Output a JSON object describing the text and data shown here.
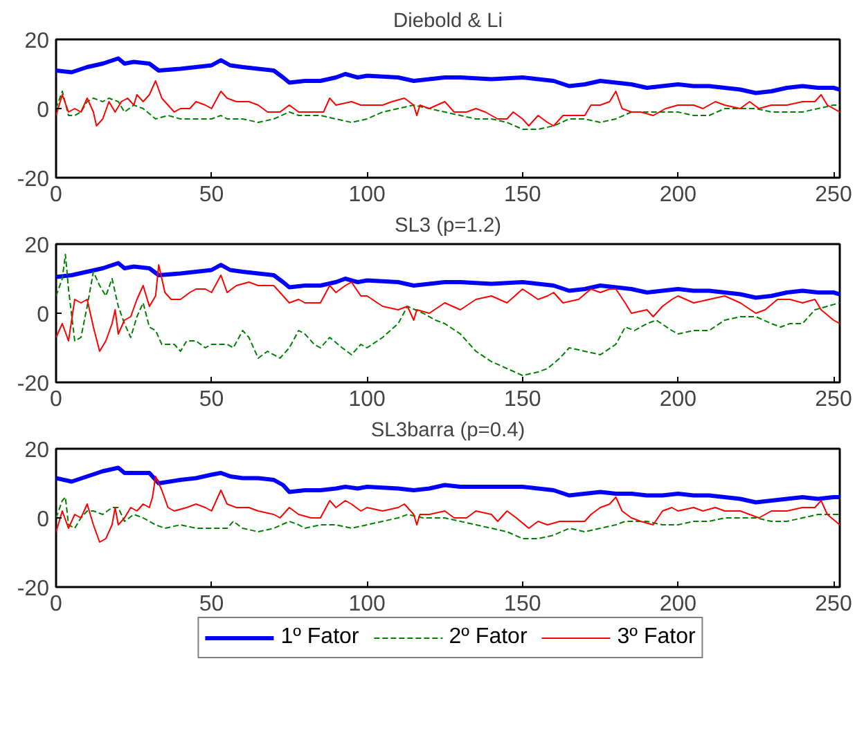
{
  "chart_data": [
    {
      "type": "line",
      "title": "Diebold & Li",
      "xlim": [
        0,
        252
      ],
      "ylim": [
        -20,
        20
      ],
      "xticks": [
        0,
        50,
        100,
        150,
        200,
        250
      ],
      "yticks": [
        -20,
        0,
        20
      ],
      "grid": false,
      "legend": false,
      "series": [
        {
          "color": "#0000ff",
          "line_style": "solid",
          "x": [
            0,
            5,
            10,
            15,
            20,
            22,
            25,
            30,
            33,
            40,
            45,
            50,
            53,
            56,
            60,
            65,
            70,
            73,
            75,
            80,
            85,
            90,
            93,
            97,
            100,
            110,
            115,
            120,
            125,
            130,
            140,
            150,
            155,
            160,
            165,
            170,
            175,
            180,
            185,
            190,
            195,
            200,
            205,
            210,
            215,
            220,
            225,
            230,
            235,
            240,
            245,
            250,
            252
          ],
          "values": [
            11,
            10.5,
            12,
            13,
            14.5,
            13,
            13.5,
            13,
            11,
            11.5,
            12,
            12.5,
            14,
            12.5,
            12,
            11.5,
            11,
            9,
            7.5,
            8,
            8,
            9,
            10,
            9,
            9.5,
            9,
            8,
            8.5,
            9,
            9,
            8.5,
            9,
            8.5,
            8,
            6.5,
            7,
            8,
            7.5,
            7,
            6,
            6.5,
            7,
            6.5,
            6.5,
            6,
            5.5,
            4.5,
            5,
            6,
            6.5,
            6,
            6,
            5.5
          ]
        },
        {
          "color": "#008000",
          "line_style": "dashed",
          "x": [
            0,
            2,
            4,
            6,
            8,
            10,
            12,
            15,
            17,
            20,
            22,
            25,
            28,
            32,
            36,
            40,
            45,
            50,
            53,
            55,
            60,
            65,
            70,
            75,
            78,
            85,
            90,
            95,
            100,
            105,
            110,
            115,
            120,
            125,
            130,
            135,
            140,
            145,
            150,
            155,
            160,
            165,
            170,
            175,
            180,
            185,
            190,
            195,
            200,
            205,
            210,
            215,
            220,
            225,
            230,
            235,
            240,
            245,
            250,
            252
          ],
          "values": [
            0,
            5,
            -2,
            -2,
            -1,
            2,
            3,
            2,
            3,
            2,
            -1,
            1,
            0,
            -3,
            -2,
            -3,
            -3,
            -3,
            -2,
            -3,
            -3,
            -4,
            -3,
            -1,
            -2,
            -2,
            -3,
            -4,
            -3,
            -1,
            0,
            1,
            0,
            -1,
            -2,
            -3,
            -3,
            -4,
            -6,
            -6,
            -5,
            -3,
            -3,
            -4,
            -3,
            -1,
            -1,
            -1,
            -1,
            -2,
            -2,
            0,
            0,
            0,
            -1,
            -1,
            -1,
            0,
            1,
            1
          ]
        },
        {
          "color": "#ff0000",
          "line_style": "solid",
          "x": [
            0,
            2,
            4,
            6,
            8,
            10,
            12,
            13,
            15,
            17,
            19,
            21,
            23,
            25,
            26,
            28,
            30,
            32,
            34,
            36,
            38,
            40,
            43,
            45,
            48,
            50,
            53,
            55,
            58,
            62,
            65,
            68,
            72,
            75,
            78,
            82,
            86,
            88,
            90,
            95,
            98,
            100,
            105,
            108,
            112,
            115,
            116,
            117,
            120,
            125,
            128,
            132,
            135,
            138,
            142,
            145,
            147,
            150,
            152,
            155,
            158,
            160,
            163,
            166,
            170,
            172,
            175,
            178,
            180,
            182,
            185,
            188,
            192,
            196,
            200,
            205,
            208,
            212,
            215,
            220,
            223,
            226,
            230,
            235,
            240,
            244,
            246,
            248,
            252
          ],
          "values": [
            -2,
            4,
            -1,
            0,
            -1,
            3,
            -1,
            -5,
            -3,
            2,
            -1,
            2,
            3,
            1,
            4,
            2,
            4,
            8,
            3,
            1,
            -1,
            0,
            0,
            2,
            1,
            0,
            5,
            3,
            2,
            2,
            1,
            -1,
            -1,
            1,
            -1,
            -1,
            -1,
            3,
            1,
            2,
            1,
            1,
            1,
            2,
            3,
            1,
            -2,
            1,
            0,
            2,
            -1,
            -1,
            0,
            -1,
            -3,
            -3,
            -1,
            -3,
            -5,
            -2,
            -4,
            -5,
            -2,
            -2,
            -2,
            1,
            1,
            2,
            5,
            0,
            -1,
            -1,
            -2,
            0,
            1,
            1,
            0,
            2,
            1,
            0,
            2,
            0,
            1,
            1,
            2,
            2,
            4,
            1,
            -1
          ]
        }
      ]
    },
    {
      "type": "line",
      "title": "SL3 (p=1.2)",
      "xlim": [
        0,
        252
      ],
      "ylim": [
        -20,
        20
      ],
      "xticks": [
        0,
        50,
        100,
        150,
        200,
        250
      ],
      "yticks": [
        -20,
        0,
        20
      ],
      "grid": false,
      "legend": false,
      "series": [
        {
          "color": "#0000ff",
          "line_style": "solid",
          "x": [
            0,
            5,
            10,
            15,
            20,
            22,
            25,
            30,
            33,
            40,
            45,
            50,
            53,
            56,
            60,
            65,
            70,
            73,
            75,
            80,
            85,
            90,
            93,
            97,
            100,
            110,
            115,
            120,
            125,
            130,
            140,
            150,
            155,
            160,
            165,
            170,
            175,
            180,
            185,
            190,
            195,
            200,
            205,
            210,
            215,
            220,
            225,
            230,
            235,
            240,
            245,
            250,
            252
          ],
          "values": [
            10.5,
            11,
            12,
            13,
            14.5,
            13,
            13.5,
            13,
            11,
            11.5,
            12,
            12.5,
            14,
            12.5,
            12,
            11.5,
            11,
            9,
            7.5,
            8,
            8,
            9,
            10,
            9,
            9.5,
            9,
            8,
            8.5,
            9,
            9,
            8.5,
            9,
            8.5,
            8,
            6.5,
            7,
            8,
            7.5,
            7,
            6,
            6.5,
            7,
            6.5,
            6.5,
            6,
            5.5,
            4.5,
            5,
            6,
            6.5,
            6,
            6,
            5.5
          ]
        },
        {
          "color": "#008000",
          "line_style": "dashed",
          "x": [
            0,
            2,
            3,
            4,
            6,
            8,
            10,
            12,
            14,
            16,
            18,
            20,
            22,
            24,
            26,
            28,
            30,
            32,
            34,
            38,
            40,
            42,
            45,
            48,
            50,
            55,
            57,
            60,
            62,
            65,
            68,
            72,
            75,
            78,
            80,
            83,
            85,
            88,
            92,
            95,
            98,
            100,
            105,
            110,
            113,
            118,
            122,
            125,
            130,
            135,
            140,
            145,
            150,
            155,
            158,
            162,
            165,
            170,
            175,
            180,
            183,
            186,
            190,
            193,
            198,
            200,
            205,
            210,
            215,
            220,
            225,
            230,
            233,
            236,
            240,
            244,
            248,
            252
          ],
          "values": [
            5,
            10,
            17,
            7,
            -8,
            -7,
            2,
            12,
            8,
            5,
            10,
            2,
            -3,
            -7,
            -1,
            3,
            -4,
            -5,
            -9,
            -9,
            -11,
            -8,
            -8,
            -10,
            -9,
            -9,
            -10,
            -5,
            -7,
            -13,
            -11,
            -13,
            -10,
            -5,
            -6,
            -9,
            -10,
            -7,
            -10,
            -12,
            -9,
            -10,
            -7,
            -3,
            2,
            0,
            -2,
            -3,
            -6,
            -11,
            -14,
            -16,
            -18,
            -17,
            -16,
            -13,
            -10,
            -11,
            -12,
            -9,
            -4,
            -5,
            -3,
            -2,
            -5,
            -6,
            -5,
            -5,
            -2,
            -1,
            -1,
            -3,
            -4,
            -3,
            -3,
            1,
            2,
            3
          ]
        },
        {
          "color": "#ff0000",
          "line_style": "solid",
          "x": [
            0,
            2,
            4,
            6,
            8,
            10,
            12,
            14,
            16,
            18,
            19,
            20,
            22,
            24,
            26,
            28,
            30,
            32,
            33,
            35,
            37,
            40,
            43,
            45,
            48,
            50,
            53,
            55,
            58,
            62,
            65,
            70,
            72,
            75,
            78,
            80,
            85,
            88,
            90,
            93,
            95,
            98,
            100,
            105,
            110,
            113,
            115,
            116,
            120,
            125,
            130,
            135,
            140,
            145,
            150,
            155,
            158,
            160,
            163,
            168,
            172,
            175,
            178,
            180,
            183,
            185,
            190,
            192,
            195,
            198,
            200,
            205,
            210,
            215,
            220,
            225,
            228,
            232,
            236,
            240,
            244,
            246,
            250,
            252
          ],
          "values": [
            -7,
            -3,
            -8,
            4,
            3,
            4,
            -4,
            -11,
            -8,
            -3,
            1,
            -6,
            -2,
            -1,
            4,
            8,
            2,
            5,
            14,
            6,
            4,
            4,
            6,
            7,
            7,
            6,
            11,
            6,
            8,
            9,
            8,
            8,
            6,
            3,
            4,
            3,
            3,
            8,
            6,
            8,
            9,
            5,
            5,
            2,
            1,
            2,
            -2,
            1,
            0,
            3,
            1,
            4,
            5,
            3,
            7,
            4,
            5,
            6,
            3,
            4,
            7,
            6,
            7,
            7,
            3,
            0,
            1,
            -1,
            2,
            4,
            5,
            3,
            4,
            5,
            3,
            0,
            1,
            4,
            4,
            3,
            4,
            1,
            -2,
            -3
          ]
        }
      ]
    },
    {
      "type": "line",
      "title": "SL3barra (p=0.4)",
      "xlim": [
        0,
        252
      ],
      "ylim": [
        -20,
        20
      ],
      "xticks": [
        0,
        50,
        100,
        150,
        200,
        250
      ],
      "yticks": [
        -20,
        0,
        20
      ],
      "grid": false,
      "legend": "bottom",
      "series": [
        {
          "name": "1º Fator",
          "color": "#0000ff",
          "line_style": "solid",
          "x": [
            0,
            5,
            10,
            15,
            20,
            22,
            25,
            30,
            33,
            40,
            45,
            50,
            53,
            56,
            60,
            65,
            70,
            73,
            75,
            80,
            85,
            90,
            93,
            97,
            100,
            110,
            115,
            120,
            125,
            130,
            140,
            150,
            155,
            160,
            165,
            170,
            175,
            180,
            185,
            190,
            195,
            200,
            205,
            210,
            215,
            220,
            225,
            230,
            235,
            240,
            245,
            250,
            252
          ],
          "values": [
            11.5,
            10.5,
            12,
            13.5,
            14.5,
            13,
            13,
            13,
            10,
            11,
            11.5,
            12.5,
            13,
            12,
            11.5,
            11.5,
            11,
            9.5,
            7.5,
            8,
            8,
            8.5,
            9,
            8.5,
            9,
            8.5,
            8,
            8.5,
            9.5,
            9,
            9,
            9,
            8.5,
            8,
            6.5,
            7,
            7.5,
            7,
            7,
            6.5,
            6.5,
            7,
            6.5,
            6.5,
            6,
            5.5,
            4.5,
            5,
            5.5,
            6,
            5.5,
            6,
            6
          ]
        },
        {
          "name": "2º Fator",
          "color": "#008000",
          "line_style": "dashed",
          "x": [
            0,
            2,
            3,
            4,
            6,
            8,
            10,
            12,
            15,
            18,
            20,
            22,
            25,
            28,
            32,
            35,
            40,
            45,
            50,
            55,
            57,
            60,
            65,
            70,
            75,
            78,
            80,
            85,
            90,
            95,
            100,
            105,
            110,
            113,
            118,
            125,
            130,
            135,
            140,
            145,
            150,
            155,
            160,
            165,
            170,
            175,
            180,
            183,
            190,
            195,
            200,
            205,
            210,
            215,
            220,
            225,
            230,
            235,
            240,
            245,
            250,
            252
          ],
          "values": [
            0,
            5,
            6,
            -2,
            -3,
            0,
            2,
            2,
            1,
            3,
            3,
            -1,
            1,
            0,
            -2,
            -3,
            -2,
            -3,
            -3,
            -3,
            -1,
            -3,
            -4,
            -3,
            -1,
            -2,
            -3,
            -2,
            -2,
            -3,
            -2,
            -1,
            0,
            1,
            0,
            0,
            -1,
            -2,
            -3,
            -4,
            -6,
            -6,
            -5,
            -3,
            -4,
            -3,
            -2,
            -1,
            -1,
            -2,
            -2,
            -1,
            -1,
            0,
            0,
            0,
            -1,
            -1,
            0,
            1,
            1,
            1
          ]
        },
        {
          "name": "3º Fator",
          "color": "#ff0000",
          "line_style": "solid",
          "x": [
            0,
            2,
            4,
            6,
            8,
            10,
            12,
            14,
            16,
            18,
            19,
            20,
            22,
            24,
            26,
            28,
            30,
            31,
            32,
            34,
            36,
            38,
            42,
            45,
            48,
            50,
            53,
            55,
            58,
            62,
            65,
            70,
            72,
            75,
            78,
            82,
            85,
            88,
            90,
            93,
            95,
            98,
            100,
            105,
            110,
            112,
            115,
            116,
            117,
            120,
            125,
            128,
            132,
            135,
            140,
            142,
            145,
            148,
            152,
            155,
            158,
            162,
            165,
            170,
            172,
            175,
            178,
            180,
            182,
            185,
            188,
            192,
            195,
            198,
            200,
            205,
            208,
            212,
            215,
            220,
            223,
            226,
            230,
            235,
            240,
            244,
            246,
            248,
            252
          ],
          "values": [
            -4,
            2,
            -3,
            1,
            0,
            4,
            -2,
            -7,
            -6,
            -2,
            3,
            -2,
            0,
            3,
            2,
            4,
            3,
            6,
            12,
            8,
            3,
            2,
            3,
            4,
            3,
            2,
            8,
            4,
            3,
            3,
            2,
            1,
            0,
            3,
            1,
            0,
            0,
            5,
            3,
            5,
            4,
            2,
            3,
            2,
            3,
            4,
            1,
            -2,
            1,
            1,
            2,
            0,
            0,
            2,
            1,
            -1,
            2,
            0,
            -3,
            -1,
            -2,
            -1,
            -1,
            -1,
            1,
            3,
            4,
            6,
            2,
            0,
            -1,
            -2,
            2,
            3,
            2,
            3,
            2,
            3,
            2,
            2,
            1,
            0,
            2,
            2,
            3,
            3,
            5,
            1,
            -2
          ]
        }
      ]
    }
  ]
}
